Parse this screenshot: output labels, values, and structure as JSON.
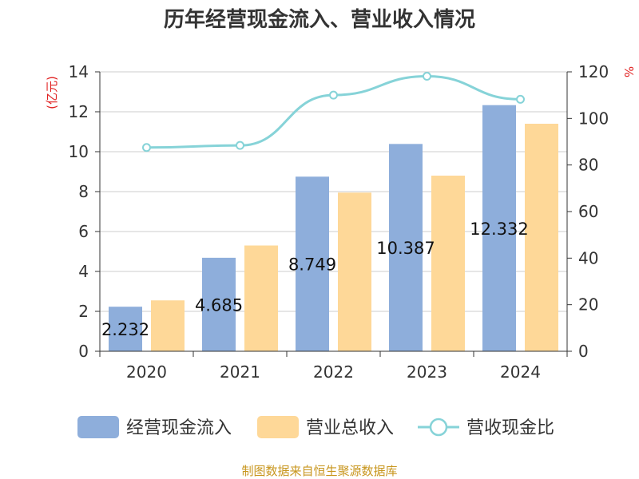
{
  "chart_data": {
    "type": "bar",
    "title": "历年经营现金流入、营业收入情况",
    "categories": [
      "2020",
      "2021",
      "2022",
      "2023",
      "2024"
    ],
    "series": [
      {
        "name": "经营现金流入",
        "type": "bar",
        "axis": "left",
        "color": "#8eaedb",
        "values": [
          2.232,
          4.685,
          8.749,
          10.387,
          12.332
        ]
      },
      {
        "name": "营业总收入",
        "type": "bar",
        "axis": "left",
        "color": "#fed898",
        "values": [
          2.55,
          5.3,
          7.95,
          8.8,
          11.4
        ]
      },
      {
        "name": "营收现金比",
        "type": "line",
        "axis": "right",
        "color": "#86d3d8",
        "values": [
          87.5,
          88.4,
          110.0,
          118.1,
          108.2
        ]
      }
    ],
    "data_labels": [
      "2.232",
      "4.685",
      "8.749",
      "10.387",
      "12.332"
    ],
    "y_left": {
      "label": "(亿元)",
      "ylim": [
        0,
        14
      ],
      "ticks": [
        "0",
        "2",
        "4",
        "6",
        "8",
        "10",
        "12",
        "14"
      ]
    },
    "y_right": {
      "label": "%",
      "ylim": [
        0,
        120
      ],
      "ticks": [
        "0",
        "20",
        "40",
        "60",
        "80",
        "100",
        "120"
      ]
    },
    "grid": true,
    "legend_position": "bottom"
  },
  "source": "制图数据来自恒生聚源数据库"
}
